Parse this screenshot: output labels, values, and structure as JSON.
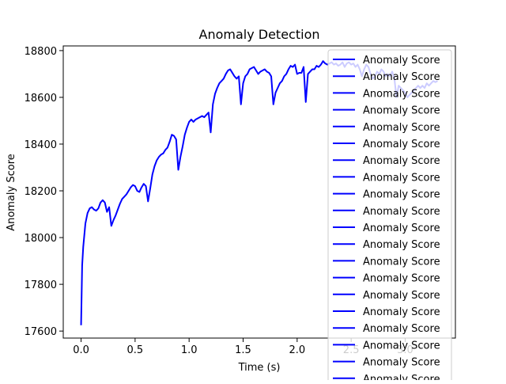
{
  "chart_data": {
    "type": "line",
    "title": "Anomaly Detection",
    "xlabel": "Time (s)",
    "ylabel": "Anomaly Score",
    "xlim": [
      -0.165,
      3.465
    ],
    "ylim": [
      17570,
      18820
    ],
    "xticks": [
      0.0,
      0.5,
      1.0,
      1.5,
      2.0,
      2.5,
      3.0
    ],
    "xtick_labels": [
      "0.0",
      "0.5",
      "1.0",
      "1.5",
      "2.0",
      "2.5",
      "3.0"
    ],
    "yticks": [
      17600,
      17800,
      18000,
      18200,
      18400,
      18600,
      18800
    ],
    "ytick_labels": [
      "17600",
      "17800",
      "18000",
      "18200",
      "18400",
      "18600",
      "18800"
    ],
    "grid": false,
    "legend_position": "right",
    "colors": {
      "series": "#0000ff",
      "legend_bg": "#ffffff",
      "legend_border": "#cccccc"
    },
    "series": [
      {
        "name": "Anomaly Score",
        "color": "#0000ff",
        "x": [
          0.0,
          0.01,
          0.02,
          0.04,
          0.06,
          0.08,
          0.1,
          0.12,
          0.14,
          0.16,
          0.18,
          0.2,
          0.22,
          0.24,
          0.26,
          0.28,
          0.3,
          0.32,
          0.34,
          0.36,
          0.38,
          0.4,
          0.42,
          0.44,
          0.46,
          0.48,
          0.5,
          0.52,
          0.54,
          0.56,
          0.58,
          0.6,
          0.62,
          0.64,
          0.66,
          0.68,
          0.7,
          0.72,
          0.74,
          0.76,
          0.78,
          0.8,
          0.82,
          0.84,
          0.86,
          0.88,
          0.9,
          0.92,
          0.94,
          0.96,
          0.98,
          1.0,
          1.02,
          1.04,
          1.06,
          1.08,
          1.1,
          1.12,
          1.14,
          1.16,
          1.18,
          1.2,
          1.22,
          1.24,
          1.26,
          1.28,
          1.3,
          1.32,
          1.34,
          1.36,
          1.38,
          1.4,
          1.42,
          1.44,
          1.46,
          1.48,
          1.5,
          1.52,
          1.54,
          1.56,
          1.58,
          1.6,
          1.62,
          1.64,
          1.66,
          1.68,
          1.7,
          1.72,
          1.74,
          1.76,
          1.78,
          1.8,
          1.82,
          1.84,
          1.86,
          1.88,
          1.9,
          1.92,
          1.94,
          1.96,
          1.98,
          2.0,
          2.02,
          2.04,
          2.06,
          2.08,
          2.1,
          2.12,
          2.14,
          2.16,
          2.18,
          2.2,
          2.22,
          2.24,
          2.26,
          2.28,
          2.3,
          2.32,
          2.34,
          2.36,
          2.38,
          2.4,
          2.42,
          2.44,
          2.46,
          2.48,
          2.5,
          2.52,
          2.54,
          2.56,
          2.58,
          2.6,
          2.62,
          2.64,
          2.66,
          2.68,
          2.7,
          2.72,
          2.74,
          2.76,
          2.78,
          2.8,
          2.82,
          2.84,
          2.86,
          2.88,
          2.9,
          2.92,
          2.94,
          2.96,
          2.98,
          3.0,
          3.02,
          3.04,
          3.06,
          3.08,
          3.1,
          3.12,
          3.14,
          3.16,
          3.18,
          3.2,
          3.22,
          3.24,
          3.26,
          3.28,
          3.3
        ],
        "values": [
          17625,
          17880,
          17960,
          18060,
          18105,
          18125,
          18130,
          18120,
          18115,
          18125,
          18150,
          18160,
          18150,
          18110,
          18130,
          18050,
          18075,
          18095,
          18120,
          18145,
          18165,
          18175,
          18185,
          18200,
          18215,
          18225,
          18220,
          18200,
          18195,
          18215,
          18230,
          18220,
          18155,
          18210,
          18270,
          18305,
          18330,
          18345,
          18355,
          18360,
          18375,
          18385,
          18410,
          18440,
          18435,
          18420,
          18290,
          18345,
          18390,
          18440,
          18470,
          18495,
          18505,
          18495,
          18505,
          18510,
          18515,
          18520,
          18515,
          18525,
          18535,
          18450,
          18570,
          18615,
          18640,
          18660,
          18670,
          18680,
          18700,
          18715,
          18720,
          18705,
          18690,
          18680,
          18690,
          18570,
          18660,
          18690,
          18700,
          18720,
          18725,
          18730,
          18715,
          18700,
          18710,
          18715,
          18720,
          18710,
          18705,
          18690,
          18570,
          18620,
          18640,
          18660,
          18670,
          18690,
          18700,
          18720,
          18735,
          18730,
          18740,
          18700,
          18705,
          18705,
          18730,
          18580,
          18700,
          18710,
          18720,
          18720,
          18735,
          18730,
          18740,
          18755,
          18745,
          18740,
          18745,
          18750,
          18740,
          18745,
          18735,
          18740,
          18750,
          18730,
          18745,
          18750,
          18740,
          18745,
          18730,
          18740,
          18720,
          18690,
          18720,
          18740,
          18730,
          18700,
          18680,
          18690,
          18710,
          18700,
          18720,
          18710,
          18690,
          18700,
          18690,
          18710,
          18680,
          18600,
          18650,
          18640,
          18630,
          18620,
          18600,
          18610,
          18620,
          18630,
          18640,
          18650,
          18640,
          18650,
          18640,
          18660,
          18650,
          18660,
          18670,
          18665,
          18670
        ]
      }
    ],
    "legend_labels": [
      "Anomaly Score",
      "Anomaly Score",
      "Anomaly Score",
      "Anomaly Score",
      "Anomaly Score",
      "Anomaly Score",
      "Anomaly Score",
      "Anomaly Score",
      "Anomaly Score",
      "Anomaly Score",
      "Anomaly Score",
      "Anomaly Score",
      "Anomaly Score",
      "Anomaly Score",
      "Anomaly Score",
      "Anomaly Score",
      "Anomaly Score",
      "Anomaly Score",
      "Anomaly Score",
      "Anomaly Score"
    ]
  }
}
